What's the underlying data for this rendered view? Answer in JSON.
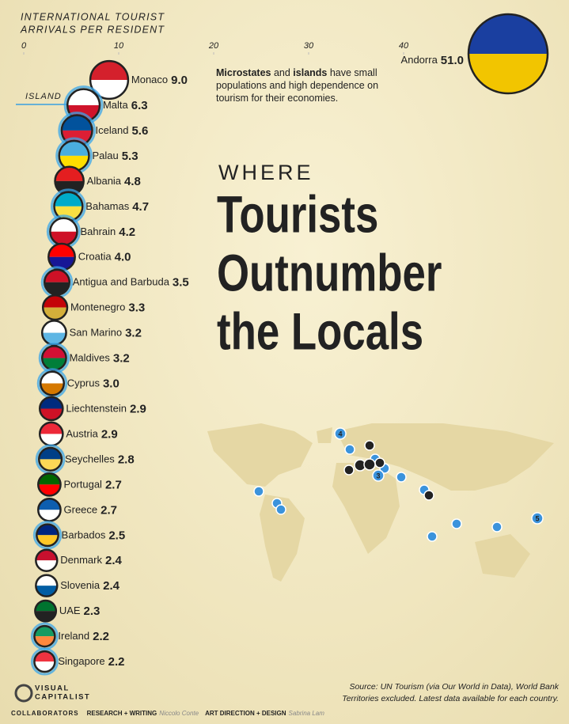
{
  "chart_data": {
    "type": "flag_dot",
    "axis_label": [
      "INTERNATIONAL TOURIST",
      "ARRIVALS PER RESIDENT"
    ],
    "title_kicker": "WHERE",
    "title_lines": [
      "Tourists",
      "Outnumber",
      "the Locals"
    ],
    "note": [
      {
        "text": "Microstates",
        "bold": true
      },
      {
        "text": " and ",
        "bold": false
      },
      {
        "text": "islands",
        "bold": true
      },
      {
        "text": " have small populations and high dependence on tourism for their economies.",
        "bold": false
      }
    ],
    "island_label": "ISLAND",
    "categories": [
      "Andorra",
      "Monaco",
      "Malta",
      "Iceland",
      "Palau",
      "Albania",
      "Bahamas",
      "Bahrain",
      "Croatia",
      "Antigua and Barbuda",
      "Montenegro",
      "San Marino",
      "Maldives",
      "Cyprus",
      "Liechtenstein",
      "Austria",
      "Seychelles",
      "Portugal",
      "Greece",
      "Barbados",
      "Denmark",
      "Slovenia",
      "UAE",
      "Ireland",
      "Singapore"
    ],
    "values": [
      51.0,
      9.0,
      6.3,
      5.6,
      5.3,
      4.8,
      4.7,
      4.2,
      4.0,
      3.5,
      3.3,
      3.2,
      3.2,
      3.0,
      2.9,
      2.9,
      2.8,
      2.7,
      2.7,
      2.5,
      2.4,
      2.4,
      2.3,
      2.2,
      2.2
    ],
    "value_labels": [
      "51.0",
      "9.0",
      "6.3",
      "5.6",
      "5.3",
      "4.8",
      "4.7",
      "4.2",
      "4.0",
      "3.5",
      "3.3",
      "3.2",
      "3.2",
      "3.0",
      "2.9",
      "2.9",
      "2.8",
      "2.7",
      "2.7",
      "2.5",
      "2.4",
      "2.4",
      "2.3",
      "2.2",
      "2.2"
    ],
    "islands": [
      false,
      false,
      true,
      true,
      true,
      false,
      true,
      true,
      false,
      true,
      false,
      false,
      true,
      true,
      false,
      false,
      true,
      false,
      false,
      true,
      false,
      false,
      false,
      true,
      true
    ],
    "flag_colors": [
      [
        "#1a3fa0",
        "#f2c500"
      ],
      [
        "#d4202c",
        "#ffffff"
      ],
      [
        "#ffffff",
        "#cf142b"
      ],
      [
        "#02529c",
        "#dc1e35"
      ],
      [
        "#4aaede",
        "#ffde00"
      ],
      [
        "#e41e20",
        "#222222"
      ],
      [
        "#00abc9",
        "#fae042"
      ],
      [
        "#ffffff",
        "#ce1126"
      ],
      [
        "#ff0000",
        "#171796"
      ],
      [
        "#ce1126",
        "#222222"
      ],
      [
        "#c40308",
        "#d4af3a"
      ],
      [
        "#ffffff",
        "#5eb6e4"
      ],
      [
        "#d21034",
        "#007e3a"
      ],
      [
        "#ffffff",
        "#d57800"
      ],
      [
        "#002b7f",
        "#ce1126"
      ],
      [
        "#ed2939",
        "#ffffff"
      ],
      [
        "#003f87",
        "#fcd856"
      ],
      [
        "#006600",
        "#ff0000"
      ],
      [
        "#0d5eaf",
        "#ffffff"
      ],
      [
        "#00267f",
        "#ffc726"
      ],
      [
        "#c8102e",
        "#ffffff"
      ],
      [
        "#ffffff",
        "#005da4"
      ],
      [
        "#00732f",
        "#222222"
      ],
      [
        "#169b62",
        "#ff883e"
      ],
      [
        "#ef3340",
        "#ffffff"
      ]
    ],
    "xlim": [
      0,
      40
    ],
    "xticks": [
      0,
      10,
      20,
      30,
      40
    ],
    "map_markers": [
      "1",
      "2",
      "3",
      "4",
      "5"
    ],
    "source": [
      "Source: UN Tourism (via Our World in Data), World Bank",
      "Territories excluded. Latest data available for each country."
    ],
    "logo": [
      "VISUAL",
      "CAPITALIST"
    ],
    "credits": [
      "COLLABORATORS",
      "RESEARCH + WRITING",
      "Niccolo Conte",
      "ART DIRECTION + DESIGN",
      "Sabrina Lam"
    ]
  }
}
